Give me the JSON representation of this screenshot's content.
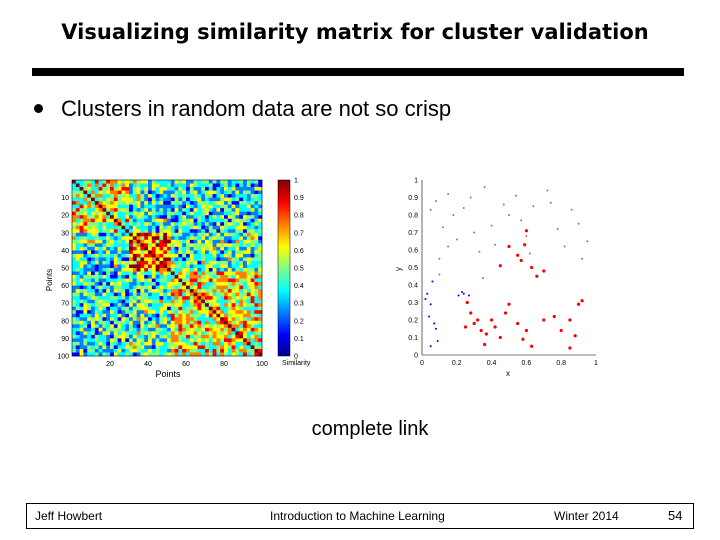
{
  "title": "Visualizing similarity matrix for cluster validation",
  "bullet": "Clusters in random data are not so crisp",
  "caption": "complete link",
  "footer": {
    "author": "Jeff Howbert",
    "course": "Introduction to Machine Learning",
    "term": "Winter 2014",
    "page": "54"
  },
  "chart_data": [
    {
      "type": "heatmap",
      "title": "",
      "xlabel": "Points",
      "ylabel": "Points",
      "x_ticks": [
        "20",
        "40",
        "60",
        "80",
        "100"
      ],
      "y_ticks": [
        "10",
        "20",
        "30",
        "40",
        "50",
        "60",
        "70",
        "80",
        "90",
        "100"
      ],
      "colorbar_label": "Similarity",
      "colorbar_ticks": [
        "0",
        "0.1",
        "0.2",
        "0.3",
        "0.4",
        "0.5",
        "0.6",
        "0.7",
        "0.8",
        "0.9",
        "1"
      ],
      "xlim": [
        0,
        100
      ],
      "ylim": [
        0,
        100
      ],
      "colormap": [
        "#00008f",
        "#0000ff",
        "#0080ff",
        "#00ffff",
        "#80ff80",
        "#ffff00",
        "#ff8000",
        "#ff0000",
        "#800000"
      ]
    },
    {
      "type": "scatter",
      "title": "",
      "xlabel": "x",
      "ylabel": "y",
      "xlim": [
        0,
        1
      ],
      "ylim": [
        0,
        1
      ],
      "x_ticks": [
        "0",
        "0.2",
        "0.4",
        "0.6",
        "0.8",
        "1"
      ],
      "y_ticks": [
        "0",
        "0.1",
        "0.2",
        "0.3",
        "0.4",
        "0.5",
        "0.6",
        "0.7",
        "0.8",
        "0.9",
        "1"
      ],
      "series": [
        {
          "color": "#0000ff",
          "points": [
            [
              0.02,
              0.32
            ],
            [
              0.03,
              0.35
            ],
            [
              0.05,
              0.29
            ],
            [
              0.06,
              0.42
            ],
            [
              0.04,
              0.22
            ],
            [
              0.08,
              0.15
            ],
            [
              0.05,
              0.05
            ],
            [
              0.07,
              0.18
            ],
            [
              0.09,
              0.08
            ],
            [
              0.21,
              0.34
            ],
            [
              0.24,
              0.35
            ],
            [
              0.27,
              0.34
            ],
            [
              0.23,
              0.36
            ]
          ]
        },
        {
          "color": "#ff0000",
          "points": [
            [
              0.26,
              0.3
            ],
            [
              0.28,
              0.24
            ],
            [
              0.3,
              0.18
            ],
            [
              0.32,
              0.2
            ],
            [
              0.25,
              0.16
            ],
            [
              0.34,
              0.14
            ],
            [
              0.37,
              0.12
            ],
            [
              0.4,
              0.2
            ],
            [
              0.42,
              0.16
            ],
            [
              0.45,
              0.1
            ],
            [
              0.48,
              0.24
            ],
            [
              0.5,
              0.29
            ],
            [
              0.55,
              0.18
            ],
            [
              0.58,
              0.09
            ],
            [
              0.6,
              0.14
            ],
            [
              0.63,
              0.05
            ],
            [
              0.36,
              0.06
            ],
            [
              0.45,
              0.51
            ],
            [
              0.5,
              0.62
            ],
            [
              0.55,
              0.57
            ],
            [
              0.57,
              0.54
            ],
            [
              0.59,
              0.63
            ],
            [
              0.6,
              0.71
            ],
            [
              0.63,
              0.5
            ],
            [
              0.66,
              0.45
            ],
            [
              0.7,
              0.48
            ],
            [
              0.7,
              0.2
            ],
            [
              0.76,
              0.22
            ],
            [
              0.8,
              0.14
            ],
            [
              0.85,
              0.2
            ],
            [
              0.9,
              0.29
            ],
            [
              0.92,
              0.31
            ],
            [
              0.88,
              0.11
            ],
            [
              0.85,
              0.04
            ]
          ]
        },
        {
          "color": "#808080",
          "points": [
            [
              0.05,
              0.83
            ],
            [
              0.08,
              0.88
            ],
            [
              0.12,
              0.73
            ],
            [
              0.15,
              0.92
            ],
            [
              0.18,
              0.8
            ],
            [
              0.2,
              0.66
            ],
            [
              0.24,
              0.84
            ],
            [
              0.28,
              0.9
            ],
            [
              0.3,
              0.7
            ],
            [
              0.33,
              0.59
            ],
            [
              0.36,
              0.96
            ],
            [
              0.4,
              0.74
            ],
            [
              0.42,
              0.63
            ],
            [
              0.47,
              0.86
            ],
            [
              0.5,
              0.8
            ],
            [
              0.54,
              0.91
            ],
            [
              0.57,
              0.77
            ],
            [
              0.6,
              0.68
            ],
            [
              0.64,
              0.85
            ],
            [
              0.72,
              0.94
            ],
            [
              0.74,
              0.87
            ],
            [
              0.78,
              0.72
            ],
            [
              0.82,
              0.62
            ],
            [
              0.86,
              0.83
            ],
            [
              0.9,
              0.75
            ],
            [
              0.92,
              0.55
            ],
            [
              0.95,
              0.65
            ],
            [
              0.1,
              0.55
            ],
            [
              0.15,
              0.62
            ],
            [
              0.62,
              0.58
            ],
            [
              0.35,
              0.44
            ],
            [
              0.1,
              0.46
            ]
          ]
        }
      ]
    }
  ]
}
